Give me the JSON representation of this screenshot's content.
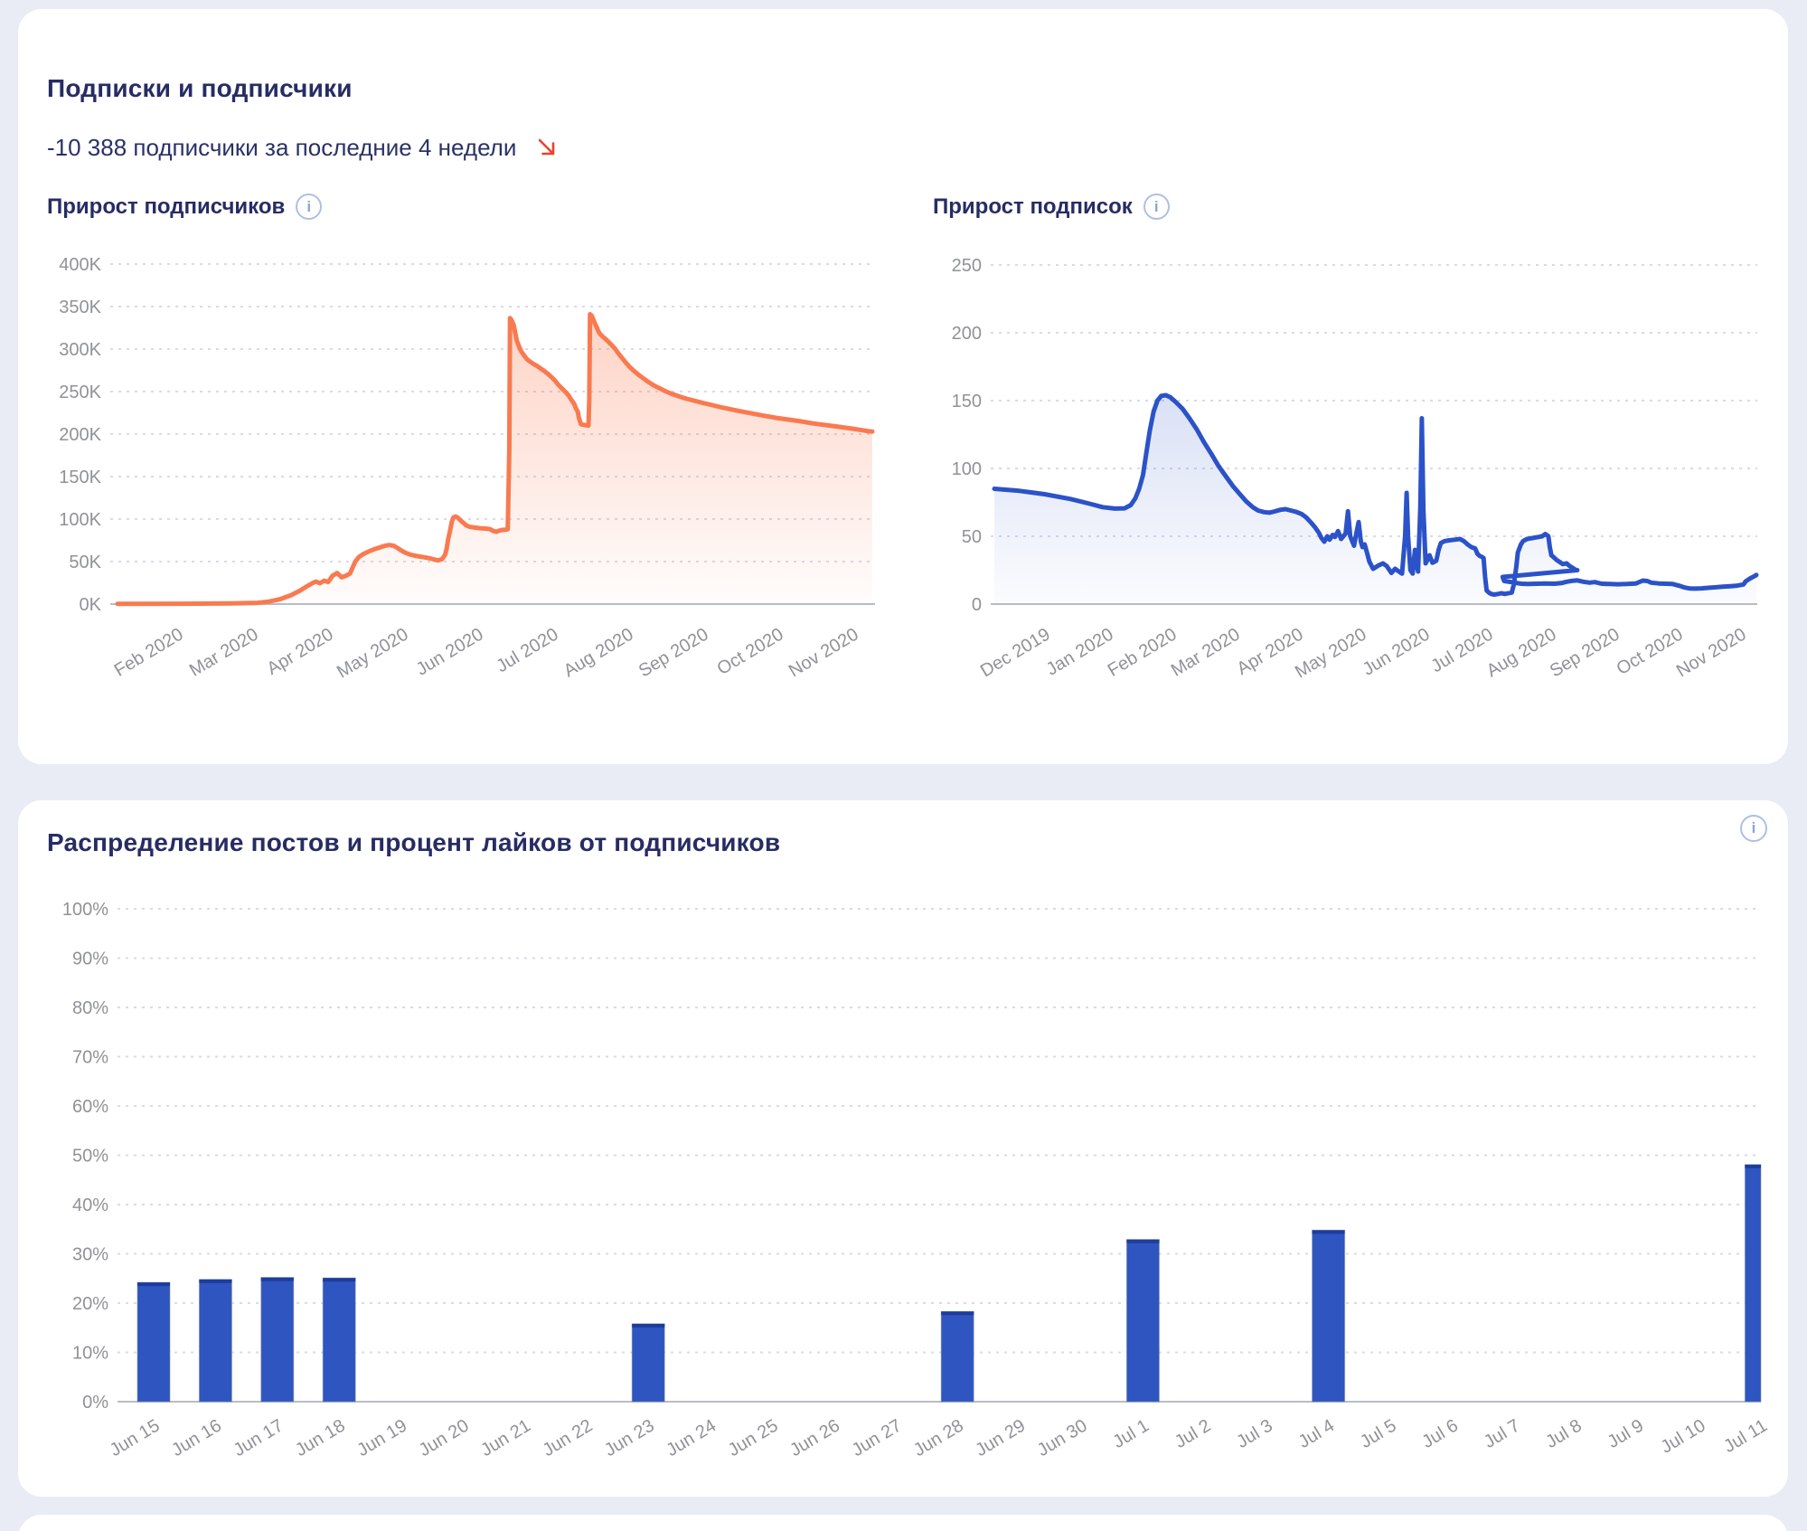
{
  "page": {
    "background": "#e9ecf4",
    "card_background": "#ffffff"
  },
  "card1": {
    "title": "Подписки и подписчики",
    "subtitle": "-10 388 подписчики за последние 4 недели",
    "trend": "down",
    "trend_color": "#e8432c"
  },
  "card2": {
    "title": "Распределение постов и процент лайков от подписчиков"
  },
  "chart_data": [
    {
      "type": "area",
      "title": "Прирост подписчиков",
      "line_color": "#f97a50",
      "fill_from": "rgba(249,122,80,0.38)",
      "fill_to": "rgba(249,122,80,0.02)",
      "ylim": [
        0,
        400
      ],
      "y_ticks": [
        "0K",
        "50K",
        "100K",
        "150K",
        "200K",
        "250K",
        "300K",
        "350K",
        "400K"
      ],
      "x_ticks": [
        "Feb 2020",
        "Mar 2020",
        "Apr 2020",
        "May 2020",
        "Jun 2020",
        "Jul 2020",
        "Aug 2020",
        "Sep 2020",
        "Oct 2020",
        "Nov 2020"
      ],
      "grid": "dotted",
      "points": [
        [
          0,
          0.3
        ],
        [
          0.09,
          0.4
        ],
        [
          0.15,
          0.7
        ],
        [
          0.186,
          1.5
        ],
        [
          0.201,
          3
        ],
        [
          0.216,
          6
        ],
        [
          0.23,
          10.5
        ],
        [
          0.242,
          16
        ],
        [
          0.251,
          21
        ],
        [
          0.259,
          25
        ],
        [
          0.263,
          26.5
        ],
        [
          0.268,
          24.5
        ],
        [
          0.274,
          27.5
        ],
        [
          0.279,
          26
        ],
        [
          0.285,
          33.5
        ],
        [
          0.291,
          36.5
        ],
        [
          0.297,
          31.5
        ],
        [
          0.303,
          33.5
        ],
        [
          0.308,
          36
        ],
        [
          0.311,
          42
        ],
        [
          0.315,
          50
        ],
        [
          0.32,
          55.5
        ],
        [
          0.326,
          59
        ],
        [
          0.333,
          62
        ],
        [
          0.34,
          64.5
        ],
        [
          0.347,
          66.5
        ],
        [
          0.354,
          68.5
        ],
        [
          0.36,
          69.5
        ],
        [
          0.366,
          68.5
        ],
        [
          0.371,
          66
        ],
        [
          0.376,
          63
        ],
        [
          0.381,
          60.5
        ],
        [
          0.387,
          58.5
        ],
        [
          0.393,
          57
        ],
        [
          0.4,
          56
        ],
        [
          0.407,
          55
        ],
        [
          0.414,
          53.8
        ],
        [
          0.42,
          52.2
        ],
        [
          0.425,
          51.5
        ],
        [
          0.43,
          53
        ],
        [
          0.434,
          58
        ],
        [
          0.436,
          65
        ],
        [
          0.438,
          76
        ],
        [
          0.441,
          88
        ],
        [
          0.443,
          97
        ],
        [
          0.445,
          102
        ],
        [
          0.448,
          103
        ],
        [
          0.451,
          101.5
        ],
        [
          0.455,
          98
        ],
        [
          0.459,
          95
        ],
        [
          0.462,
          92.5
        ],
        [
          0.467,
          90.8
        ],
        [
          0.473,
          90
        ],
        [
          0.48,
          89.3
        ],
        [
          0.487,
          88.8
        ],
        [
          0.493,
          88.3
        ],
        [
          0.498,
          86
        ],
        [
          0.502,
          85
        ],
        [
          0.505,
          86.3
        ],
        [
          0.51,
          87.2
        ],
        [
          0.514,
          87.5
        ],
        [
          0.517,
          88
        ],
        [
          0.519,
          180
        ],
        [
          0.52,
          336.5
        ],
        [
          0.522,
          334
        ],
        [
          0.525,
          328
        ],
        [
          0.527,
          319
        ],
        [
          0.529,
          310
        ],
        [
          0.532,
          303
        ],
        [
          0.535,
          297
        ],
        [
          0.539,
          292
        ],
        [
          0.542,
          288.5
        ],
        [
          0.546,
          285.5
        ],
        [
          0.551,
          282.5
        ],
        [
          0.556,
          280
        ],
        [
          0.56,
          277.5
        ],
        [
          0.565,
          274.5
        ],
        [
          0.57,
          271
        ],
        [
          0.575,
          267
        ],
        [
          0.58,
          262.5
        ],
        [
          0.584,
          258
        ],
        [
          0.589,
          253.5
        ],
        [
          0.594,
          249
        ],
        [
          0.598,
          245
        ],
        [
          0.601,
          240.5
        ],
        [
          0.605,
          235.5
        ],
        [
          0.607,
          231
        ],
        [
          0.61,
          226
        ],
        [
          0.611,
          220
        ],
        [
          0.613,
          214
        ],
        [
          0.614,
          211.5
        ],
        [
          0.618,
          210.8
        ],
        [
          0.621,
          210.3
        ],
        [
          0.624,
          210
        ],
        [
          0.625,
          240
        ],
        [
          0.626,
          341
        ],
        [
          0.628,
          339.5
        ],
        [
          0.63,
          336
        ],
        [
          0.632,
          331
        ],
        [
          0.635,
          325.5
        ],
        [
          0.637,
          321
        ],
        [
          0.639,
          318
        ],
        [
          0.643,
          314.5
        ],
        [
          0.647,
          311.5
        ],
        [
          0.651,
          308
        ],
        [
          0.655,
          304.5
        ],
        [
          0.659,
          300.5
        ],
        [
          0.663,
          295.5
        ],
        [
          0.668,
          290
        ],
        [
          0.673,
          284.5
        ],
        [
          0.678,
          279.5
        ],
        [
          0.684,
          274.5
        ],
        [
          0.69,
          270
        ],
        [
          0.696,
          266
        ],
        [
          0.703,
          261.5
        ],
        [
          0.71,
          257.5
        ],
        [
          0.719,
          253.5
        ],
        [
          0.727,
          250
        ],
        [
          0.735,
          247
        ],
        [
          0.745,
          244
        ],
        [
          0.754,
          241.5
        ],
        [
          0.765,
          239
        ],
        [
          0.776,
          236.5
        ],
        [
          0.788,
          234
        ],
        [
          0.8,
          231.5
        ],
        [
          0.813,
          229
        ],
        [
          0.827,
          226.5
        ],
        [
          0.842,
          224
        ],
        [
          0.857,
          221.5
        ],
        [
          0.873,
          219
        ],
        [
          0.889,
          217
        ],
        [
          0.905,
          215
        ],
        [
          0.922,
          212.5
        ],
        [
          0.939,
          210.5
        ],
        [
          0.956,
          208.5
        ],
        [
          0.972,
          206.5
        ],
        [
          0.984,
          205
        ],
        [
          0.994,
          203.5
        ],
        [
          1,
          203
        ]
      ]
    },
    {
      "type": "area",
      "title": "Прирост подписок",
      "line_color": "#2b52c8",
      "fill_from": "rgba(43,82,200,0.27)",
      "fill_to": "rgba(43,82,200,0.02)",
      "ylim": [
        0,
        250
      ],
      "y_ticks": [
        "0",
        "50",
        "100",
        "150",
        "200",
        "250"
      ],
      "x_ticks": [
        "Dec 2019",
        "Jan 2020",
        "Feb 2020",
        "Mar 2020",
        "Apr 2020",
        "May 2020",
        "Jun 2020",
        "Jul 2020",
        "Aug 2020",
        "Sep 2020",
        "Oct 2020",
        "Nov 2020"
      ],
      "grid": "dotted",
      "points": [
        [
          0,
          85
        ],
        [
          0.033,
          83.5
        ],
        [
          0.066,
          81
        ],
        [
          0.1,
          77.5
        ],
        [
          0.125,
          74
        ],
        [
          0.142,
          71.5
        ],
        [
          0.158,
          70.4
        ],
        [
          0.171,
          70.6
        ],
        [
          0.179,
          73
        ],
        [
          0.185,
          78
        ],
        [
          0.19,
          85
        ],
        [
          0.195,
          95
        ],
        [
          0.199,
          110
        ],
        [
          0.204,
          128
        ],
        [
          0.209,
          142
        ],
        [
          0.214,
          150
        ],
        [
          0.219,
          153.5
        ],
        [
          0.225,
          154
        ],
        [
          0.231,
          152.5
        ],
        [
          0.238,
          149
        ],
        [
          0.247,
          144
        ],
        [
          0.256,
          137
        ],
        [
          0.266,
          128.5
        ],
        [
          0.275,
          119.5
        ],
        [
          0.285,
          110.5
        ],
        [
          0.294,
          102
        ],
        [
          0.304,
          94
        ],
        [
          0.313,
          87
        ],
        [
          0.323,
          80.5
        ],
        [
          0.331,
          75.5
        ],
        [
          0.339,
          71.5
        ],
        [
          0.346,
          69
        ],
        [
          0.354,
          67.8
        ],
        [
          0.361,
          67.4
        ],
        [
          0.368,
          68.3
        ],
        [
          0.375,
          69.5
        ],
        [
          0.382,
          70
        ],
        [
          0.389,
          69
        ],
        [
          0.396,
          68
        ],
        [
          0.403,
          66.5
        ],
        [
          0.409,
          64
        ],
        [
          0.415,
          60.5
        ],
        [
          0.421,
          56.5
        ],
        [
          0.426,
          52.5
        ],
        [
          0.429,
          49
        ],
        [
          0.433,
          46
        ],
        [
          0.437,
          50
        ],
        [
          0.44,
          47.5
        ],
        [
          0.444,
          51
        ],
        [
          0.447,
          49.5
        ],
        [
          0.451,
          53.8
        ],
        [
          0.455,
          48
        ],
        [
          0.458,
          50
        ],
        [
          0.461,
          52
        ],
        [
          0.464,
          68.5
        ],
        [
          0.467,
          50
        ],
        [
          0.472,
          43
        ],
        [
          0.475,
          52
        ],
        [
          0.478,
          60.5
        ],
        [
          0.481,
          46
        ],
        [
          0.483,
          42
        ],
        [
          0.486,
          44
        ],
        [
          0.489,
          38
        ],
        [
          0.492,
          31.5
        ],
        [
          0.497,
          26
        ],
        [
          0.504,
          28.5
        ],
        [
          0.51,
          30
        ],
        [
          0.515,
          28
        ],
        [
          0.521,
          23
        ],
        [
          0.526,
          26
        ],
        [
          0.531,
          24
        ],
        [
          0.535,
          22.5
        ],
        [
          0.539,
          50
        ],
        [
          0.541,
          82
        ],
        [
          0.543,
          50
        ],
        [
          0.546,
          25
        ],
        [
          0.549,
          22.5
        ],
        [
          0.552,
          40
        ],
        [
          0.556,
          24
        ],
        [
          0.559,
          70
        ],
        [
          0.561,
          137
        ],
        [
          0.563,
          70
        ],
        [
          0.566,
          30
        ],
        [
          0.571,
          36
        ],
        [
          0.575,
          30.5
        ],
        [
          0.58,
          32
        ],
        [
          0.583,
          40
        ],
        [
          0.586,
          45
        ],
        [
          0.591,
          46.5
        ],
        [
          0.597,
          47
        ],
        [
          0.604,
          47.5
        ],
        [
          0.611,
          48
        ],
        [
          0.616,
          46.5
        ],
        [
          0.621,
          44
        ],
        [
          0.626,
          42
        ],
        [
          0.631,
          41
        ],
        [
          0.634,
          37
        ],
        [
          0.637,
          35.5
        ],
        [
          0.639,
          35
        ],
        [
          0.642,
          34
        ],
        [
          0.644,
          20
        ],
        [
          0.646,
          10
        ],
        [
          0.649,
          8.5
        ],
        [
          0.652,
          7.5
        ],
        [
          0.656,
          7
        ],
        [
          0.661,
          7.5
        ],
        [
          0.665,
          8
        ],
        [
          0.67,
          7.5
        ],
        [
          0.674,
          8
        ],
        [
          0.679,
          8.5
        ],
        [
          0.682,
          15
        ],
        [
          0.685,
          28
        ],
        [
          0.687,
          38
        ],
        [
          0.691,
          44
        ],
        [
          0.694,
          46.5
        ],
        [
          0.699,
          48
        ],
        [
          0.704,
          48.5
        ],
        [
          0.709,
          49
        ],
        [
          0.714,
          49.5
        ],
        [
          0.719,
          50
        ],
        [
          0.723,
          51.7
        ],
        [
          0.727,
          50
        ],
        [
          0.729,
          42
        ],
        [
          0.731,
          36
        ],
        [
          0.735,
          34
        ],
        [
          0.738,
          32.5
        ],
        [
          0.742,
          31
        ],
        [
          0.746,
          29.5
        ],
        [
          0.751,
          30
        ],
        [
          0.755,
          28
        ],
        [
          0.758,
          27
        ],
        [
          0.762,
          25.5
        ],
        [
          0.765,
          25
        ],
        [
          0.667,
          20
        ],
        [
          0.669,
          17
        ],
        [
          0.681,
          16
        ],
        [
          0.686,
          15.5
        ],
        [
          0.692,
          15
        ],
        [
          0.7,
          14.8
        ],
        [
          0.712,
          15
        ],
        [
          0.723,
          15.2
        ],
        [
          0.735,
          15
        ],
        [
          0.744,
          15.5
        ],
        [
          0.751,
          16.5
        ],
        [
          0.759,
          17.2
        ],
        [
          0.765,
          17.5
        ],
        [
          0.773,
          16.5
        ],
        [
          0.781,
          15.8
        ],
        [
          0.788,
          16.2
        ],
        [
          0.797,
          15
        ],
        [
          0.807,
          14.8
        ],
        [
          0.818,
          14.6
        ],
        [
          0.83,
          14.8
        ],
        [
          0.842,
          15.2
        ],
        [
          0.851,
          17.3
        ],
        [
          0.857,
          17
        ],
        [
          0.862,
          15.8
        ],
        [
          0.872,
          15.2
        ],
        [
          0.881,
          15
        ],
        [
          0.89,
          14.8
        ],
        [
          0.899,
          13.5
        ],
        [
          0.906,
          12.2
        ],
        [
          0.913,
          11.5
        ],
        [
          0.919,
          11.4
        ],
        [
          0.928,
          11.6
        ],
        [
          0.937,
          12
        ],
        [
          0.947,
          12.4
        ],
        [
          0.956,
          12.8
        ],
        [
          0.966,
          13.2
        ],
        [
          0.975,
          13.6
        ],
        [
          0.983,
          14.5
        ],
        [
          0.986,
          16.8
        ],
        [
          0.992,
          19
        ],
        [
          0.997,
          20.5
        ],
        [
          1,
          21.5
        ]
      ]
    },
    {
      "type": "bar",
      "title": "Распределение постов и процент лайков от подписчиков",
      "bar_color": "#2e55c0",
      "bar_top_color": "#1d3c9c",
      "ylim": [
        0,
        100
      ],
      "y_ticks": [
        "0%",
        "10%",
        "20%",
        "30%",
        "40%",
        "50%",
        "60%",
        "70%",
        "80%",
        "90%",
        "100%"
      ],
      "categories": [
        "Jun 15",
        "Jun 16",
        "Jun 17",
        "Jun 18",
        "Jun 19",
        "Jun 20",
        "Jun 21",
        "Jun 22",
        "Jun 23",
        "Jun 24",
        "Jun 25",
        "Jun 26",
        "Jun 27",
        "Jun 28",
        "Jun 29",
        "Jun 30",
        "Jul 1",
        "Jul 2",
        "Jul 3",
        "Jul 4",
        "Jul 5",
        "Jul 6",
        "Jul 7",
        "Jul 8",
        "Jul 9",
        "Jul 10",
        "Jul 11"
      ],
      "values": [
        24.2,
        24.8,
        25.2,
        25.1,
        0,
        0,
        0,
        0,
        15.8,
        0,
        0,
        0,
        0,
        18.3,
        0,
        0,
        32.9,
        0,
        0,
        34.8,
        0,
        0,
        0,
        0,
        0,
        0,
        48.1
      ],
      "grid": "dotted"
    }
  ],
  "labels": {
    "grid_color": "#d9dbe6",
    "baseline_color": "#b9bcc8",
    "tick_color": "#8f9298"
  }
}
